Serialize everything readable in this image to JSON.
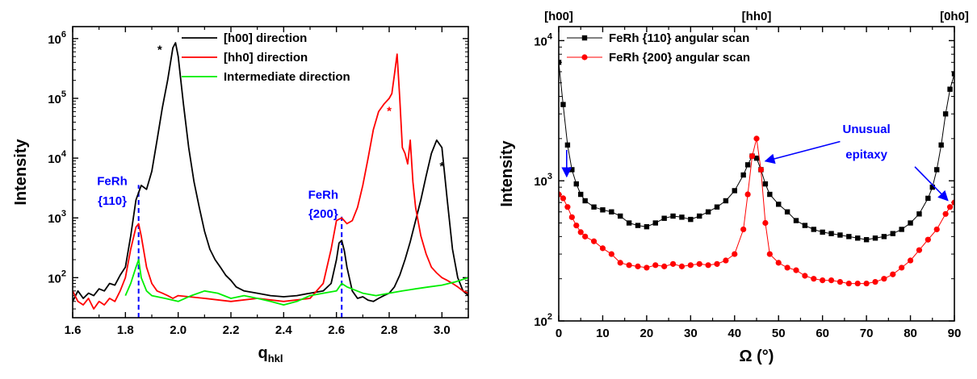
{
  "colors": {
    "black": "#000000",
    "red": "#ff0000",
    "green": "#00ee00",
    "blue": "#0000ff"
  },
  "chart_data": [
    {
      "type": "line",
      "xlabel": "q",
      "xlabel_sub": "hkl",
      "ylabel": "Intensity",
      "xlim": [
        1.6,
        3.1
      ],
      "ylim_log10": [
        1.33,
        6.2
      ],
      "yscale": "log",
      "x_ticks": [
        "1.6",
        "1.8",
        "2.0",
        "2.2",
        "2.4",
        "2.6",
        "2.8",
        "3.0"
      ],
      "y_ticks": [
        {
          "base": "10",
          "exp": "2"
        },
        {
          "base": "10",
          "exp": "3"
        },
        {
          "base": "10",
          "exp": "4"
        },
        {
          "base": "10",
          "exp": "5"
        },
        {
          "base": "10",
          "exp": "6"
        }
      ],
      "legend": {
        "placement": "top-right"
      },
      "series": [
        {
          "name": "[h00] direction",
          "color": "#000000",
          "x": [
            1.6,
            1.62,
            1.64,
            1.66,
            1.68,
            1.7,
            1.72,
            1.74,
            1.76,
            1.78,
            1.8,
            1.82,
            1.84,
            1.86,
            1.88,
            1.9,
            1.92,
            1.94,
            1.96,
            1.98,
            1.99,
            2.0,
            2.02,
            2.04,
            2.06,
            2.08,
            2.1,
            2.12,
            2.14,
            2.16,
            2.18,
            2.2,
            2.22,
            2.25,
            2.3,
            2.35,
            2.4,
            2.45,
            2.5,
            2.55,
            2.58,
            2.6,
            2.61,
            2.62,
            2.63,
            2.64,
            2.66,
            2.68,
            2.7,
            2.72,
            2.74,
            2.76,
            2.78,
            2.8,
            2.82,
            2.84,
            2.86,
            2.88,
            2.9,
            2.92,
            2.94,
            2.96,
            2.98,
            3.0,
            3.02,
            3.04,
            3.06,
            3.08,
            3.1
          ],
          "y": [
            40,
            60,
            45,
            55,
            50,
            65,
            60,
            80,
            75,
            110,
            150,
            500,
            2000,
            3500,
            3000,
            6000,
            20000,
            70000,
            200000,
            700000,
            850000,
            500000,
            80000,
            15000,
            4000,
            1500,
            600,
            300,
            200,
            150,
            110,
            90,
            70,
            60,
            55,
            50,
            48,
            50,
            55,
            60,
            80,
            200,
            380,
            420,
            280,
            150,
            60,
            45,
            48,
            42,
            40,
            45,
            50,
            55,
            70,
            110,
            200,
            400,
            900,
            2000,
            5000,
            12000,
            20000,
            15000,
            2000,
            300,
            100,
            60,
            50
          ]
        },
        {
          "name": "[hh0] direction",
          "color": "#ff0000",
          "x": [
            1.6,
            1.62,
            1.64,
            1.66,
            1.68,
            1.7,
            1.72,
            1.74,
            1.76,
            1.78,
            1.8,
            1.82,
            1.84,
            1.85,
            1.86,
            1.88,
            1.9,
            1.92,
            1.94,
            1.96,
            1.98,
            2.0,
            2.1,
            2.2,
            2.3,
            2.4,
            2.5,
            2.55,
            2.58,
            2.6,
            2.62,
            2.64,
            2.66,
            2.68,
            2.7,
            2.72,
            2.74,
            2.76,
            2.78,
            2.8,
            2.81,
            2.82,
            2.83,
            2.84,
            2.85,
            2.86,
            2.87,
            2.88,
            2.89,
            2.9,
            2.92,
            2.94,
            2.96,
            2.98,
            3.0,
            3.02,
            3.04,
            3.06,
            3.08,
            3.1
          ],
          "y": [
            60,
            40,
            35,
            45,
            30,
            40,
            35,
            45,
            40,
            60,
            100,
            300,
            700,
            800,
            500,
            150,
            80,
            60,
            55,
            50,
            45,
            50,
            45,
            40,
            45,
            40,
            45,
            80,
            300,
            900,
            1000,
            800,
            900,
            1500,
            3500,
            10000,
            30000,
            60000,
            80000,
            100000,
            120000,
            250000,
            550000,
            100000,
            15000,
            12000,
            8000,
            20000,
            4000,
            1500,
            500,
            250,
            150,
            120,
            100,
            90,
            80,
            70,
            60,
            55
          ]
        },
        {
          "name": "Intermediate direction",
          "color": "#00ee00",
          "x": [
            1.8,
            1.82,
            1.84,
            1.85,
            1.86,
            1.88,
            1.9,
            1.95,
            2.0,
            2.05,
            2.1,
            2.15,
            2.2,
            2.25,
            2.3,
            2.35,
            2.4,
            2.45,
            2.5,
            2.55,
            2.6,
            2.62,
            2.64,
            2.7,
            2.75,
            2.8,
            2.85,
            2.9,
            2.95,
            3.0,
            3.05,
            3.1
          ],
          "y": [
            50,
            80,
            150,
            200,
            100,
            60,
            50,
            45,
            40,
            50,
            60,
            55,
            45,
            50,
            45,
            40,
            35,
            40,
            50,
            55,
            60,
            80,
            70,
            55,
            50,
            55,
            60,
            65,
            70,
            75,
            85,
            100
          ]
        }
      ],
      "annotations": [
        {
          "text": "*",
          "color": "#000000",
          "x": 1.93,
          "y_log10": 5.75
        },
        {
          "text": "*",
          "color": "#ff0000",
          "x": 2.8,
          "y_log10": 4.72
        },
        {
          "text": "*",
          "color": "#000000",
          "x": 3.0,
          "y_log10": 3.8
        },
        {
          "text": "FeRh",
          "color": "#0000ff",
          "x": 1.75,
          "y_log10": 3.55
        },
        {
          "text": "{110}",
          "color": "#0000ff",
          "x": 1.75,
          "y_log10": 3.22
        },
        {
          "text": "FeRh",
          "color": "#0000ff",
          "x": 2.55,
          "y_log10": 3.32
        },
        {
          "text": "{200}",
          "color": "#0000ff",
          "x": 2.55,
          "y_log10": 3.0
        }
      ],
      "vlines": [
        {
          "x": 1.85,
          "y_top_log10": 3.55,
          "color": "#0000ff"
        },
        {
          "x": 2.62,
          "y_top_log10": 3.02,
          "color": "#0000ff"
        }
      ]
    },
    {
      "type": "scatter",
      "xlabel": "Ω (°)",
      "ylabel": "Intensity",
      "xlim": [
        0,
        90
      ],
      "ylim_log10": [
        2.0,
        4.1
      ],
      "yscale": "log",
      "x_ticks": [
        "0",
        "10",
        "20",
        "30",
        "40",
        "50",
        "60",
        "70",
        "80",
        "90"
      ],
      "y_ticks": [
        {
          "base": "10",
          "exp": "2"
        },
        {
          "base": "10",
          "exp": "3"
        },
        {
          "base": "10",
          "exp": "4"
        }
      ],
      "top_labels": [
        "[h00]",
        "[hh0]",
        "[0h0]"
      ],
      "legend": {
        "placement": "top-left"
      },
      "series": [
        {
          "name": "FeRh {110} angular scan",
          "color": "#000000",
          "marker": "square",
          "x": [
            0,
            1,
            2,
            3,
            4,
            5,
            6,
            8,
            10,
            12,
            14,
            16,
            18,
            20,
            22,
            24,
            26,
            28,
            30,
            32,
            34,
            36,
            38,
            40,
            42,
            43,
            44,
            45,
            46,
            47,
            48,
            50,
            52,
            54,
            56,
            58,
            60,
            62,
            64,
            66,
            68,
            70,
            72,
            74,
            76,
            78,
            80,
            82,
            84,
            85,
            86,
            87,
            88,
            89,
            90
          ],
          "y": [
            7000,
            3500,
            1800,
            1200,
            950,
            800,
            720,
            650,
            620,
            600,
            560,
            500,
            480,
            470,
            500,
            540,
            560,
            550,
            530,
            560,
            600,
            650,
            720,
            850,
            1100,
            1300,
            1500,
            1450,
            1200,
            950,
            800,
            680,
            600,
            520,
            480,
            450,
            430,
            420,
            410,
            400,
            390,
            380,
            390,
            400,
            420,
            450,
            500,
            580,
            750,
            900,
            1200,
            1800,
            3000,
            4500,
            5800
          ]
        },
        {
          "name": "FeRh {200} angular scan",
          "color": "#ff0000",
          "marker": "circle",
          "x": [
            0,
            1,
            2,
            3,
            4,
            5,
            6,
            8,
            10,
            12,
            14,
            16,
            18,
            20,
            22,
            24,
            26,
            28,
            30,
            32,
            34,
            36,
            38,
            40,
            42,
            43,
            44,
            45,
            46,
            47,
            48,
            50,
            52,
            54,
            56,
            58,
            60,
            62,
            64,
            66,
            68,
            70,
            72,
            74,
            76,
            78,
            80,
            82,
            84,
            86,
            88,
            89,
            90
          ],
          "y": [
            800,
            750,
            650,
            550,
            480,
            430,
            400,
            370,
            330,
            300,
            260,
            250,
            245,
            240,
            250,
            245,
            255,
            245,
            250,
            255,
            250,
            255,
            270,
            300,
            450,
            800,
            1500,
            2000,
            1200,
            500,
            300,
            260,
            240,
            230,
            210,
            200,
            195,
            195,
            190,
            185,
            185,
            185,
            190,
            200,
            215,
            240,
            270,
            320,
            380,
            450,
            580,
            650,
            700
          ]
        }
      ],
      "annotations": [
        {
          "text": "Unusual",
          "color": "#0000ff",
          "x": 70,
          "y_log10": 3.34
        },
        {
          "text": "epitaxy",
          "color": "#0000ff",
          "x": 70,
          "y_log10": 3.16
        }
      ],
      "arrows": [
        {
          "from": [
            1.8,
            3.22
          ],
          "to": [
            1.8,
            3.03
          ],
          "color": "#0000ff"
        },
        {
          "from": [
            64,
            3.28
          ],
          "to": [
            47,
            3.14
          ],
          "color": "#0000ff"
        },
        {
          "from": [
            81,
            3.1
          ],
          "to": [
            88.5,
            2.86
          ],
          "color": "#0000ff"
        }
      ]
    }
  ]
}
